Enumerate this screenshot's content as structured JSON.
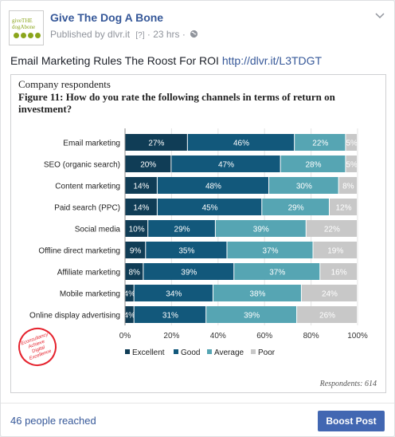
{
  "post": {
    "page_name": "Give The Dog A Bone",
    "meta_published": "Published by dlvr.it",
    "meta_tag": "[?]",
    "meta_time": "· 23 hrs ·",
    "text": "Email Marketing Rules The Roost For ROI",
    "link": "http://dlvr.it/L3TDGT",
    "logo_text": "giveTHE dogAbone"
  },
  "chart_data": {
    "type": "bar",
    "stacked": true,
    "orientation": "horizontal",
    "title": "Company respondents",
    "subtitle": "Figure 11: How do you rate the following channels in terms of return on investment?",
    "categories": [
      "Email marketing",
      "SEO (organic search)",
      "Content marketing",
      "Paid search (PPC)",
      "Social media",
      "Offline direct marketing",
      "Affiliate marketing",
      "Mobile marketing",
      "Online display advertising"
    ],
    "series": [
      {
        "name": "Excellent",
        "color": "#103d56",
        "values": [
          27,
          20,
          14,
          14,
          10,
          9,
          8,
          4,
          4
        ]
      },
      {
        "name": "Good",
        "color": "#12587b",
        "values": [
          46,
          47,
          48,
          45,
          29,
          35,
          39,
          34,
          31
        ]
      },
      {
        "name": "Average",
        "color": "#56a5b3",
        "values": [
          22,
          28,
          30,
          29,
          39,
          37,
          37,
          38,
          39
        ]
      },
      {
        "name": "Poor",
        "color": "#c8c8c8",
        "values": [
          5,
          5,
          8,
          12,
          22,
          19,
          16,
          24,
          26
        ]
      }
    ],
    "labels": [
      [
        "27%",
        "46%",
        "22%",
        "5%"
      ],
      [
        "20%",
        "47%",
        "28%",
        "5%"
      ],
      [
        "14%",
        "48%",
        "30%",
        "8%"
      ],
      [
        "14%",
        "45%",
        "29%",
        "12%"
      ],
      [
        "10%",
        "29%",
        "39%",
        "22%"
      ],
      [
        "9%",
        "35%",
        "37%",
        "19%"
      ],
      [
        "8%",
        "39%",
        "37%",
        "16%"
      ],
      [
        "4%",
        "34%",
        "38%",
        "24%"
      ],
      [
        "4%",
        "31%",
        "39%",
        "26%"
      ]
    ],
    "xticks": [
      "0%",
      "20%",
      "40%",
      "60%",
      "80%",
      "100%"
    ],
    "xlim": [
      0,
      100
    ],
    "legend_position": "bottom",
    "respondents": "Respondents: 614",
    "seal_text": "Econsultancy Achieve Digital Excellence"
  },
  "footer": {
    "reach": "46 people reached",
    "boost_label": "Boost Post"
  }
}
